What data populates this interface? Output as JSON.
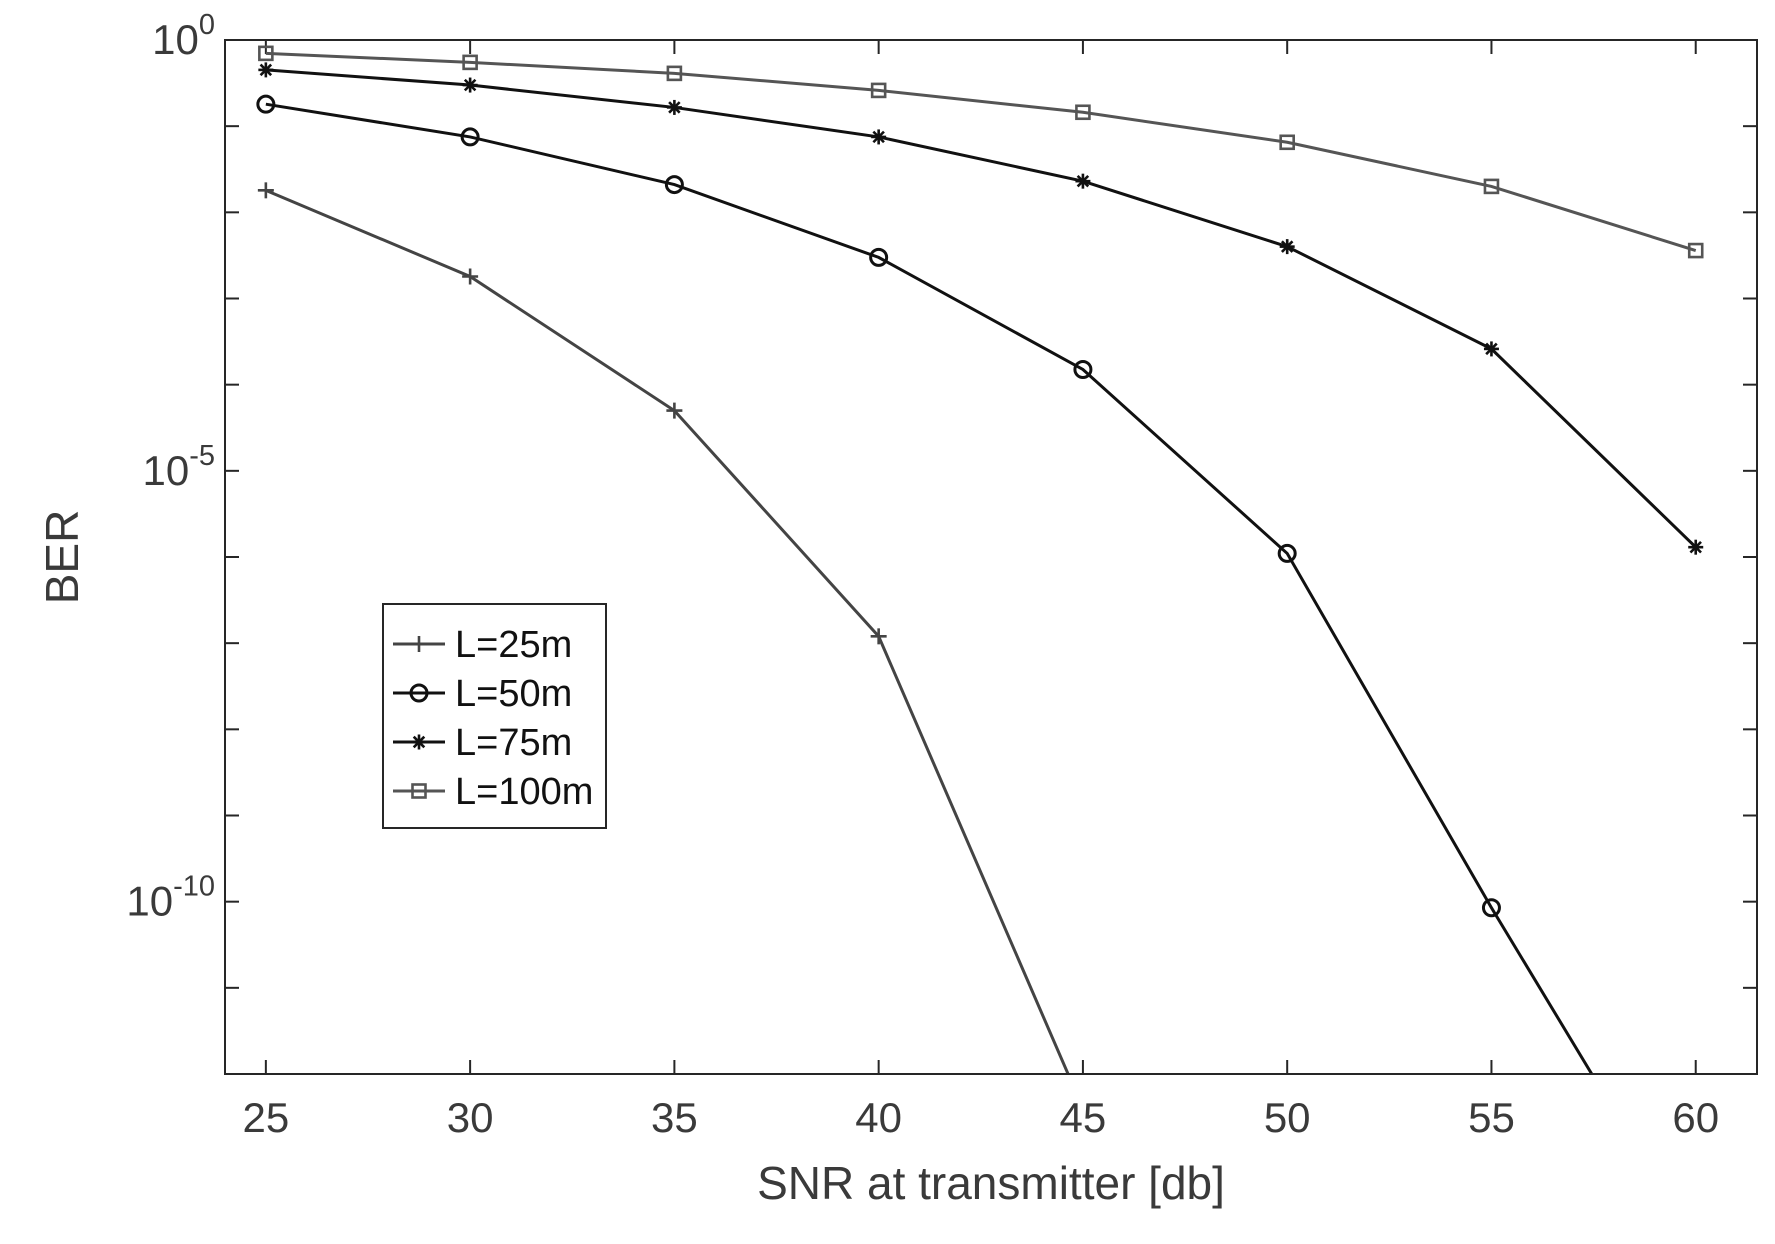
{
  "chart_data": {
    "type": "line",
    "title": "",
    "xlabel": "SNR at transmitter [db]",
    "ylabel": "BER",
    "xlim": [
      24,
      61.5
    ],
    "ylim": [
      1e-12,
      1
    ],
    "yscale": "log",
    "xticks": [
      25,
      30,
      35,
      40,
      45,
      50,
      55,
      60
    ],
    "yticks": [
      {
        "value": 1,
        "base": "10",
        "exp": "0"
      },
      {
        "value": 1e-05,
        "base": "10",
        "exp": "-5"
      },
      {
        "value": 1e-10,
        "base": "10",
        "exp": "-10"
      }
    ],
    "grid": false,
    "legend_position": "center-left",
    "series": [
      {
        "name": "L=25m",
        "marker": "plus",
        "color": "#444444",
        "x": [
          25,
          30,
          35,
          40,
          45
        ],
        "y": [
          0.018,
          0.0018,
          5e-05,
          1.2e-07,
          4e-13
        ]
      },
      {
        "name": "L=50m",
        "marker": "circle",
        "color": "#111111",
        "x": [
          25,
          30,
          35,
          40,
          45,
          50,
          55,
          60
        ],
        "y": [
          0.18,
          0.075,
          0.021,
          0.003,
          0.00015,
          1.1e-06,
          8.5e-11,
          1e-14
        ]
      },
      {
        "name": "L=75m",
        "marker": "asterisk",
        "color": "#111111",
        "x": [
          25,
          30,
          35,
          40,
          45,
          50,
          55,
          60
        ],
        "y": [
          0.45,
          0.3,
          0.165,
          0.075,
          0.023,
          0.004,
          0.00026,
          1.3e-06
        ]
      },
      {
        "name": "L=100m",
        "marker": "square",
        "color": "#555555",
        "x": [
          25,
          30,
          35,
          40,
          45,
          50,
          55,
          60
        ],
        "y": [
          0.7,
          0.55,
          0.41,
          0.26,
          0.145,
          0.065,
          0.02,
          0.0036
        ]
      }
    ]
  }
}
